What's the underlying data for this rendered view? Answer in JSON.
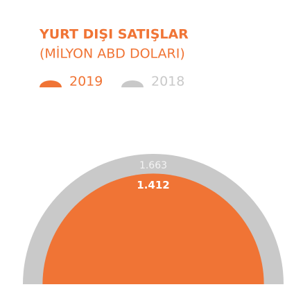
{
  "chart_data": {
    "type": "semicircle",
    "title": "YURT DIŞI SATIŞLAR",
    "subtitle": "(MİLYON ABD DOLARI)",
    "series": [
      {
        "name": "2019",
        "color": "#f07435",
        "values": [
          1412
        ],
        "value_labels": [
          "1.412"
        ]
      },
      {
        "name": "2018",
        "color": "#c9c9c9",
        "values": [
          1663
        ],
        "value_labels": [
          "1.663"
        ]
      }
    ]
  }
}
